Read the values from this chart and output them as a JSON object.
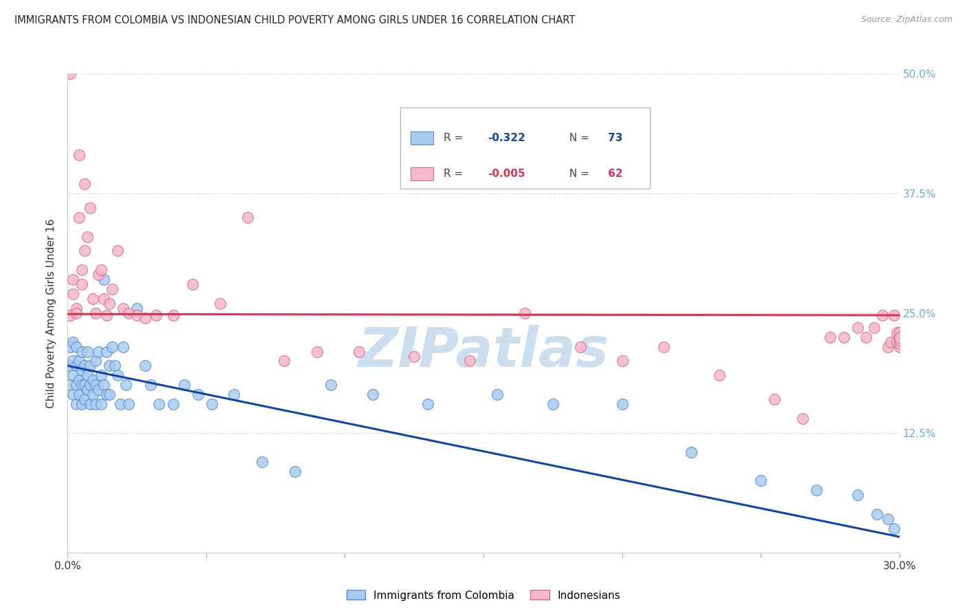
{
  "title": "IMMIGRANTS FROM COLOMBIA VS INDONESIAN CHILD POVERTY AMONG GIRLS UNDER 16 CORRELATION CHART",
  "source": "Source: ZipAtlas.com",
  "ylabel": "Child Poverty Among Girls Under 16",
  "legend_r_values": [
    "-0.322",
    "-0.005"
  ],
  "legend_n_values": [
    "73",
    "62"
  ],
  "blue_color": "#A8CCF0",
  "pink_color": "#F5B8C8",
  "blue_edge": "#5588CC",
  "pink_edge": "#DD6688",
  "trend_blue": "#1144AA",
  "trend_pink": "#DD3355",
  "watermark": "ZIPatlas",
  "watermark_color": "#CCDDED",
  "blue_intercept": 0.195,
  "blue_slope": -0.595,
  "pink_intercept": 0.249,
  "pink_slope": -0.004,
  "background_color": "#FFFFFF",
  "grid_color": "#DDDDDD",
  "right_axis_color": "#66AADD",
  "blue_scatter_x": [
    0.001,
    0.001,
    0.001,
    0.002,
    0.002,
    0.002,
    0.002,
    0.003,
    0.003,
    0.003,
    0.003,
    0.004,
    0.004,
    0.004,
    0.005,
    0.005,
    0.005,
    0.005,
    0.006,
    0.006,
    0.006,
    0.007,
    0.007,
    0.007,
    0.008,
    0.008,
    0.008,
    0.009,
    0.009,
    0.01,
    0.01,
    0.01,
    0.011,
    0.011,
    0.012,
    0.012,
    0.013,
    0.013,
    0.014,
    0.014,
    0.015,
    0.015,
    0.016,
    0.017,
    0.018,
    0.019,
    0.02,
    0.021,
    0.022,
    0.025,
    0.028,
    0.03,
    0.033,
    0.038,
    0.042,
    0.047,
    0.052,
    0.06,
    0.07,
    0.082,
    0.095,
    0.11,
    0.13,
    0.155,
    0.175,
    0.2,
    0.225,
    0.25,
    0.27,
    0.285,
    0.292,
    0.296,
    0.298
  ],
  "blue_scatter_y": [
    0.215,
    0.195,
    0.175,
    0.2,
    0.185,
    0.22,
    0.165,
    0.195,
    0.175,
    0.215,
    0.155,
    0.2,
    0.18,
    0.165,
    0.19,
    0.175,
    0.21,
    0.155,
    0.195,
    0.175,
    0.16,
    0.185,
    0.17,
    0.21,
    0.175,
    0.195,
    0.155,
    0.165,
    0.18,
    0.2,
    0.175,
    0.155,
    0.21,
    0.17,
    0.185,
    0.155,
    0.175,
    0.285,
    0.165,
    0.21,
    0.195,
    0.165,
    0.215,
    0.195,
    0.185,
    0.155,
    0.215,
    0.175,
    0.155,
    0.255,
    0.195,
    0.175,
    0.155,
    0.155,
    0.175,
    0.165,
    0.155,
    0.165,
    0.095,
    0.085,
    0.175,
    0.165,
    0.155,
    0.165,
    0.155,
    0.155,
    0.105,
    0.075,
    0.065,
    0.06,
    0.04,
    0.035,
    0.025
  ],
  "pink_scatter_x": [
    0.001,
    0.001,
    0.002,
    0.002,
    0.003,
    0.003,
    0.004,
    0.004,
    0.005,
    0.005,
    0.006,
    0.006,
    0.007,
    0.008,
    0.009,
    0.01,
    0.011,
    0.012,
    0.013,
    0.014,
    0.015,
    0.016,
    0.018,
    0.02,
    0.022,
    0.025,
    0.028,
    0.032,
    0.038,
    0.045,
    0.055,
    0.065,
    0.078,
    0.09,
    0.105,
    0.125,
    0.145,
    0.165,
    0.185,
    0.2,
    0.215,
    0.235,
    0.255,
    0.265,
    0.275,
    0.28,
    0.285,
    0.288,
    0.291,
    0.294,
    0.296,
    0.297,
    0.298,
    0.299,
    0.299,
    0.3,
    0.3,
    0.3,
    0.3,
    0.3,
    0.3,
    0.3
  ],
  "pink_scatter_y": [
    0.248,
    0.5,
    0.27,
    0.285,
    0.255,
    0.25,
    0.415,
    0.35,
    0.295,
    0.28,
    0.385,
    0.315,
    0.33,
    0.36,
    0.265,
    0.25,
    0.29,
    0.295,
    0.265,
    0.248,
    0.26,
    0.275,
    0.315,
    0.255,
    0.25,
    0.248,
    0.245,
    0.248,
    0.248,
    0.28,
    0.26,
    0.35,
    0.2,
    0.21,
    0.21,
    0.205,
    0.2,
    0.25,
    0.215,
    0.2,
    0.215,
    0.185,
    0.16,
    0.14,
    0.225,
    0.225,
    0.235,
    0.225,
    0.235,
    0.248,
    0.215,
    0.22,
    0.248,
    0.23,
    0.22,
    0.215,
    0.222,
    0.218,
    0.225,
    0.23,
    0.222,
    0.225
  ]
}
